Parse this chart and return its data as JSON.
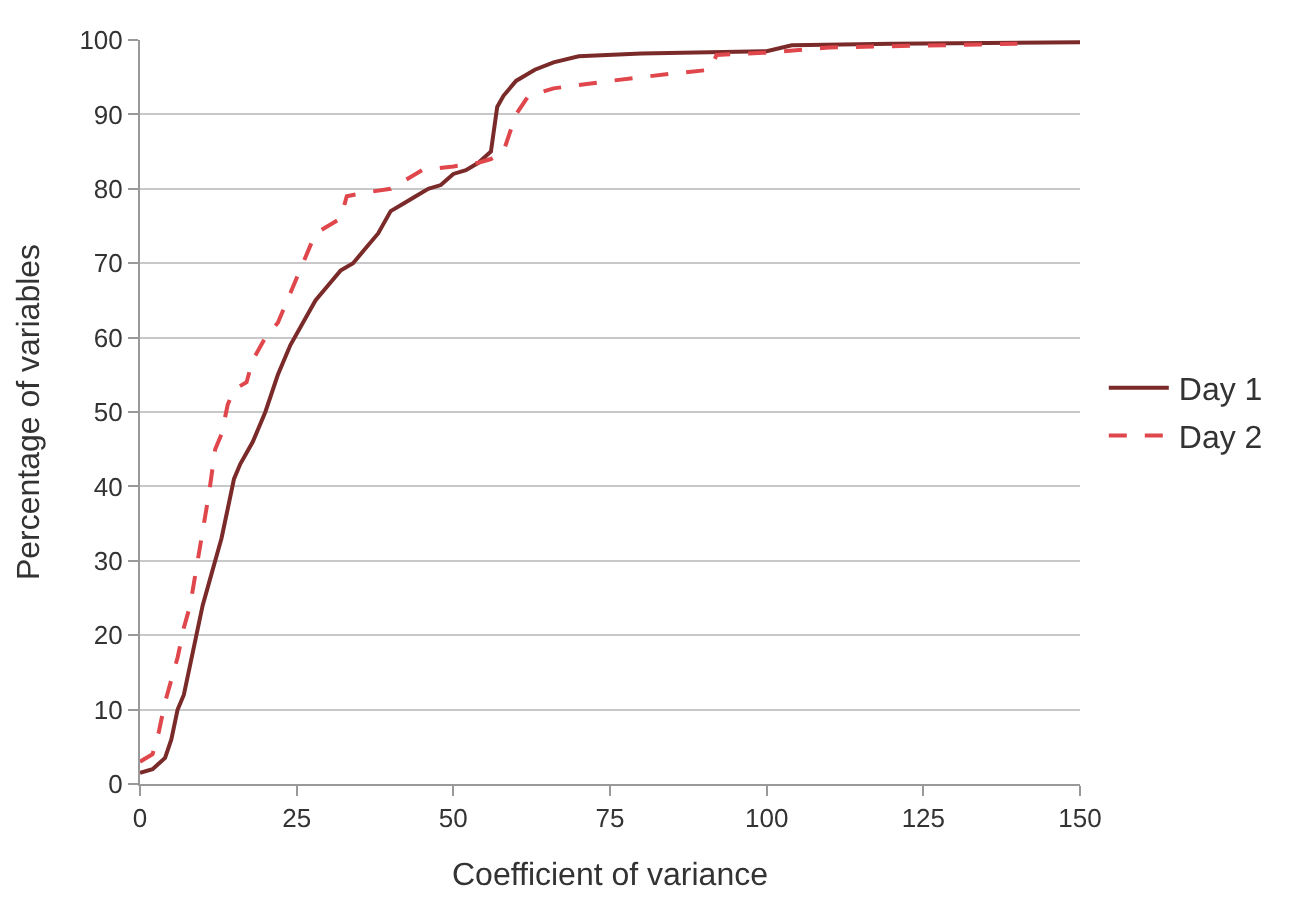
{
  "chart_data": {
    "type": "line",
    "xlabel": "Coefficient of variance",
    "ylabel": "Percentage of variables",
    "xlim": [
      0,
      150
    ],
    "xticks": [
      0,
      25,
      50,
      75,
      100,
      125,
      150
    ],
    "ylim": [
      0,
      100
    ],
    "yticks": [
      0,
      10,
      20,
      30,
      40,
      50,
      60,
      70,
      80,
      90,
      100
    ],
    "grid": "y",
    "legend": "right",
    "marker": "none",
    "series": [
      {
        "name": "Day 1",
        "color": "#7b2a2a",
        "line_style": "solid",
        "x": [
          0,
          2,
          4,
          5,
          6,
          7,
          8,
          9,
          10,
          11,
          12,
          13,
          14,
          15,
          16,
          18,
          20,
          22,
          24,
          26,
          28,
          30,
          32,
          34,
          36,
          38,
          40,
          42,
          44,
          46,
          48,
          50,
          52,
          54,
          56,
          57,
          58,
          60,
          63,
          66,
          70,
          80,
          100,
          104,
          120,
          150
        ],
        "values": [
          1.5,
          2,
          3.5,
          6,
          10,
          12,
          16,
          20,
          24,
          27,
          30,
          33,
          37,
          41,
          43,
          46,
          50,
          55,
          59,
          62,
          65,
          67,
          69,
          70,
          72,
          74,
          77,
          78,
          79,
          80,
          80.5,
          82,
          82.5,
          83.5,
          85,
          91,
          92.5,
          94.5,
          96,
          97,
          97.8,
          98.2,
          98.5,
          99.3,
          99.5,
          99.7
        ]
      },
      {
        "name": "Day 2",
        "color": "#e0474c",
        "line_style": "dashed",
        "x": [
          0,
          2,
          3,
          4,
          5,
          6,
          7,
          8,
          9,
          10,
          11,
          12,
          13,
          14,
          15,
          17,
          18,
          20,
          22,
          24,
          26,
          28,
          30,
          32,
          33,
          36,
          40,
          42,
          45,
          50,
          54,
          56,
          58,
          60,
          62,
          66,
          75,
          85,
          91,
          92,
          100,
          110,
          140
        ],
        "values": [
          3,
          4,
          7,
          11,
          14,
          17,
          21,
          24,
          29,
          34,
          39,
          45,
          47,
          51,
          53,
          54,
          57,
          60,
          62,
          66,
          70,
          74,
          75,
          76,
          79,
          79.5,
          80,
          81,
          82.5,
          83,
          83.5,
          84,
          85,
          90,
          92.5,
          93.5,
          94.5,
          95.5,
          96,
          98,
          98.3,
          99,
          99.5
        ]
      }
    ]
  }
}
